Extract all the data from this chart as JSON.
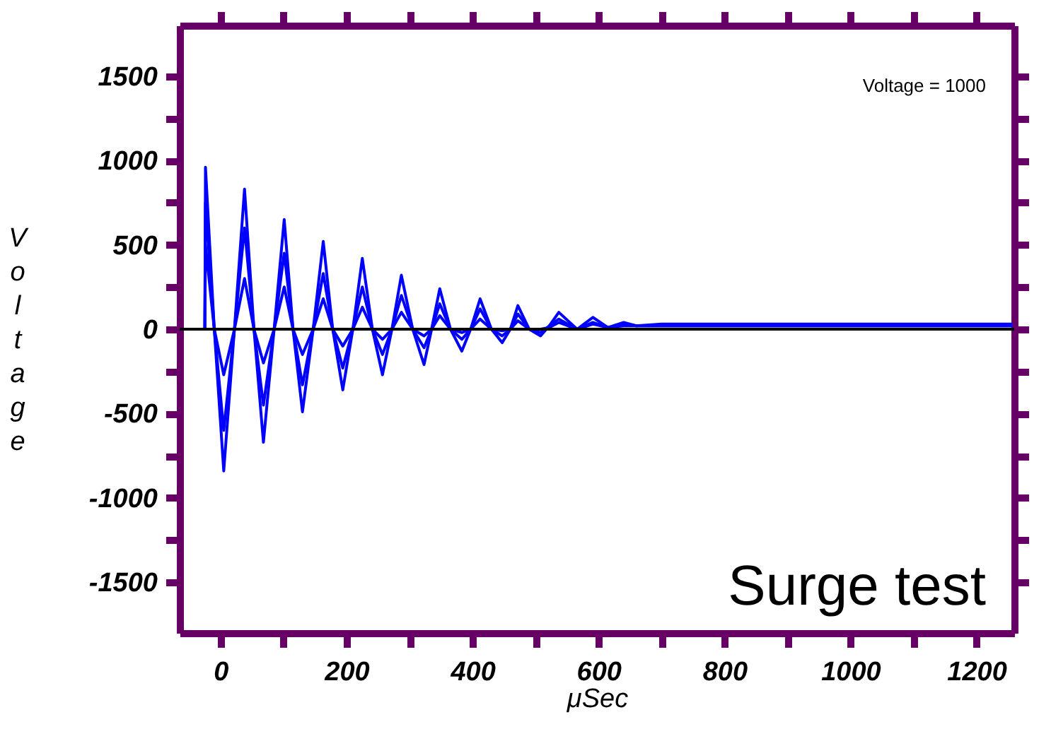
{
  "chart_data": {
    "type": "line",
    "xlabel": "μSec",
    "ylabel": "Voltage",
    "annotations": [
      "Voltage = 1000",
      "Surge test"
    ],
    "xlim": [
      -65,
      1260
    ],
    "ylim": [
      -1800,
      1800
    ],
    "xticks": [
      0,
      {
        "value": 100,
        "label": null
      },
      200,
      {
        "value": 300,
        "label": null
      },
      400,
      {
        "value": 500,
        "label": null
      },
      600,
      {
        "value": 700,
        "label": null
      },
      800,
      {
        "value": 900,
        "label": null
      },
      1000,
      {
        "value": 1100,
        "label": null
      },
      1200
    ],
    "yticks": [
      -1500,
      {
        "value": -1250,
        "label": null
      },
      -1000,
      {
        "value": -750,
        "label": null
      },
      -500,
      {
        "value": -250,
        "label": null
      },
      0,
      {
        "value": 250,
        "label": null
      },
      500,
      {
        "value": 750,
        "label": null
      },
      1000,
      {
        "value": 1250,
        "label": null
      },
      1500
    ],
    "ref_lines": [
      {
        "axis": "y",
        "value": 0,
        "color": "#000000"
      }
    ],
    "grid": false,
    "legend": false,
    "series": [
      {
        "color": "#0000ff",
        "x": [
          -25,
          -24,
          -10,
          5,
          22,
          38,
          53,
          68,
          85,
          101,
          115,
          130,
          147,
          163,
          178,
          194,
          210,
          225,
          241,
          257,
          272,
          287,
          305,
          323,
          335,
          348,
          365,
          383,
          397,
          412,
          430,
          447,
          460,
          472,
          490,
          508,
          522,
          537,
          566,
          591,
          615,
          640,
          660,
          700,
          1257
        ],
        "values": [
          0,
          960,
          0,
          -840,
          0,
          830,
          0,
          -670,
          0,
          650,
          0,
          -490,
          0,
          520,
          0,
          -360,
          0,
          420,
          0,
          -270,
          0,
          320,
          0,
          -210,
          0,
          240,
          0,
          -130,
          0,
          180,
          0,
          -80,
          0,
          140,
          0,
          -40,
          20,
          100,
          0,
          70,
          10,
          40,
          20,
          30,
          30
        ]
      },
      {
        "color": "#0000ff",
        "x": [
          -25,
          -24,
          -10,
          5,
          22,
          38,
          53,
          68,
          85,
          101,
          115,
          130,
          147,
          163,
          178,
          194,
          210,
          225,
          241,
          257,
          272,
          287,
          305,
          323,
          335,
          348,
          365,
          383,
          397,
          412,
          430,
          447,
          460,
          472,
          490,
          508,
          522,
          537,
          566,
          591,
          615,
          640,
          660,
          700,
          1257
        ],
        "values": [
          0,
          750,
          0,
          -600,
          0,
          600,
          0,
          -450,
          0,
          450,
          0,
          -330,
          0,
          330,
          0,
          -230,
          0,
          250,
          0,
          -150,
          0,
          200,
          0,
          -110,
          0,
          150,
          0,
          -60,
          0,
          120,
          0,
          -40,
          0,
          90,
          0,
          -20,
          20,
          60,
          0,
          40,
          10,
          30,
          20,
          20,
          20
        ]
      },
      {
        "color": "#0000ff",
        "x": [
          -25,
          -24,
          -10,
          5,
          22,
          38,
          53,
          68,
          85,
          101,
          115,
          130,
          147,
          163,
          178,
          194,
          210,
          225,
          241,
          257,
          272,
          287,
          305,
          323,
          335,
          348,
          365,
          383,
          397,
          412,
          430,
          447,
          460,
          472,
          490,
          508,
          522,
          537,
          566,
          591,
          615,
          640,
          660,
          700,
          1257
        ],
        "values": [
          0,
          500,
          0,
          -270,
          0,
          300,
          0,
          -200,
          0,
          250,
          0,
          -150,
          0,
          180,
          0,
          -100,
          0,
          130,
          0,
          -60,
          0,
          100,
          0,
          -40,
          0,
          80,
          0,
          -20,
          0,
          60,
          0,
          -10,
          0,
          50,
          0,
          0,
          10,
          40,
          0,
          30,
          10,
          20,
          20,
          20,
          20
        ]
      }
    ]
  }
}
